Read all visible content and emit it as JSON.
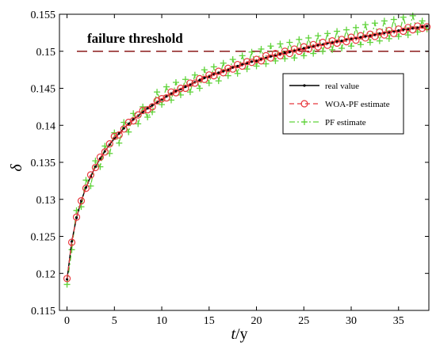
{
  "chart_data": {
    "type": "line",
    "xlabel_italic": "t",
    "xlabel_unit": "/y",
    "ylabel": "δ",
    "xlim": [
      -0.8,
      38.2
    ],
    "ylim": [
      0.115,
      0.155
    ],
    "xticks": [
      0,
      5,
      10,
      15,
      20,
      25,
      30,
      35
    ],
    "yticks": [
      0.115,
      0.12,
      0.125,
      0.13,
      0.135,
      0.14,
      0.145,
      0.15,
      0.155
    ],
    "ytick_labels": [
      "0.115",
      "0.12",
      "0.125",
      "0.13",
      "0.135",
      "0.14",
      "0.145",
      "0.15",
      "0.155"
    ],
    "threshold": {
      "value": 0.15,
      "label": "failure threshold",
      "color": "#8B1A1A"
    },
    "legend": {
      "position": "right",
      "entries": [
        {
          "name": "real value",
          "color": "#000000"
        },
        {
          "name": "WOA-PF estimate",
          "color": "#E8383D"
        },
        {
          "name": "PF estimate",
          "color": "#5FD33A"
        }
      ]
    },
    "series": [
      {
        "name": "real value",
        "color": "#000000",
        "x": [
          0,
          0.5,
          1,
          1.5,
          2,
          2.5,
          3,
          3.5,
          4,
          4.5,
          5,
          5.5,
          6,
          6.5,
          7,
          7.5,
          8,
          8.5,
          9,
          9.5,
          10,
          10.5,
          11,
          11.5,
          12,
          12.5,
          13,
          13.5,
          14,
          14.5,
          15,
          15.5,
          16,
          16.5,
          17,
          17.5,
          18,
          18.5,
          19,
          19.5,
          20,
          20.5,
          21,
          21.5,
          22,
          22.5,
          23,
          23.5,
          24,
          24.5,
          25,
          25.5,
          26,
          26.5,
          27,
          27.5,
          28,
          28.5,
          29,
          29.5,
          30,
          30.5,
          31,
          31.5,
          32,
          32.5,
          33,
          33.5,
          34,
          34.5,
          35,
          35.5,
          36,
          36.5,
          37,
          37.5,
          38
        ],
        "y": [
          0.1192,
          0.1243,
          0.1275,
          0.1298,
          0.1316,
          0.1331,
          0.1344,
          0.1355,
          0.1365,
          0.1374,
          0.1382,
          0.1389,
          0.1396,
          0.1402,
          0.1408,
          0.1413,
          0.1418,
          0.1423,
          0.1427,
          0.1431,
          0.1435,
          0.1439,
          0.1443,
          0.1446,
          0.1449,
          0.1452,
          0.1455,
          0.1458,
          0.1461,
          0.1464,
          0.1466,
          0.1469,
          0.1471,
          0.1473,
          0.1475,
          0.1478,
          0.148,
          0.1482,
          0.1484,
          0.1486,
          0.1487,
          0.1489,
          0.1491,
          0.1493,
          0.1494,
          0.1496,
          0.1498,
          0.1499,
          0.1501,
          0.1502,
          0.1504,
          0.1505,
          0.1507,
          0.1508,
          0.1509,
          0.1511,
          0.1512,
          0.1513,
          0.1514,
          0.1516,
          0.1517,
          0.1518,
          0.1519,
          0.152,
          0.1521,
          0.1522,
          0.1524,
          0.1525,
          0.1526,
          0.1527,
          0.1528,
          0.1529,
          0.153,
          0.1531,
          0.1532,
          0.1533,
          0.1534
        ]
      },
      {
        "name": "WOA-PF estimate",
        "color": "#E8383D",
        "x": [
          0,
          0.5,
          1,
          1.5,
          2,
          2.5,
          3,
          3.5,
          4,
          4.5,
          5,
          5.5,
          6,
          6.5,
          7,
          7.5,
          8,
          8.5,
          9,
          9.5,
          10,
          10.5,
          11,
          11.5,
          12,
          12.5,
          13,
          13.5,
          14,
          14.5,
          15,
          15.5,
          16,
          16.5,
          17,
          17.5,
          18,
          18.5,
          19,
          19.5,
          20,
          20.5,
          21,
          21.5,
          22,
          22.5,
          23,
          23.5,
          24,
          24.5,
          25,
          25.5,
          26,
          26.5,
          27,
          27.5,
          28,
          28.5,
          29,
          29.5,
          30,
          30.5,
          31,
          31.5,
          32,
          32.5,
          33,
          33.5,
          34,
          34.5,
          35,
          35.5,
          36,
          36.5,
          37,
          37.5,
          38
        ],
        "y": [
          0.1193,
          0.1242,
          0.1276,
          0.1298,
          0.1315,
          0.1333,
          0.1343,
          0.1357,
          0.1364,
          0.1375,
          0.1385,
          0.1387,
          0.1395,
          0.1404,
          0.1406,
          0.1414,
          0.142,
          0.1421,
          0.1425,
          0.1433,
          0.1436,
          0.1437,
          0.1445,
          0.1444,
          0.145,
          0.145,
          0.1457,
          0.1457,
          0.1463,
          0.1462,
          0.1468,
          0.1467,
          0.1473,
          0.1471,
          0.1477,
          0.1476,
          0.1482,
          0.148,
          0.1486,
          0.1485,
          0.1489,
          0.1487,
          0.1494,
          0.1491,
          0.1497,
          0.1494,
          0.15,
          0.1497,
          0.1503,
          0.15,
          0.1506,
          0.1503,
          0.1509,
          0.1506,
          0.1512,
          0.1508,
          0.1514,
          0.1511,
          0.1516,
          0.1513,
          0.1519,
          0.1515,
          0.1521,
          0.1518,
          0.1523,
          0.152,
          0.1526,
          0.1522,
          0.1528,
          0.1524,
          0.153,
          0.1527,
          0.1532,
          0.1529,
          0.1534,
          0.1531,
          0.1533
        ]
      },
      {
        "name": "PF estimate",
        "color": "#5FD33A",
        "x": [
          0,
          0.5,
          1,
          1.5,
          2,
          2.5,
          3,
          3.5,
          4,
          4.5,
          5,
          5.5,
          6,
          6.5,
          7,
          7.5,
          8,
          8.5,
          9,
          9.5,
          10,
          10.5,
          11,
          11.5,
          12,
          12.5,
          13,
          13.5,
          14,
          14.5,
          15,
          15.5,
          16,
          16.5,
          17,
          17.5,
          18,
          18.5,
          19,
          19.5,
          20,
          20.5,
          21,
          21.5,
          22,
          22.5,
          23,
          23.5,
          24,
          24.5,
          25,
          25.5,
          26,
          26.5,
          27,
          27.5,
          28,
          28.5,
          29,
          29.5,
          30,
          30.5,
          31,
          31.5,
          32,
          32.5,
          33,
          33.5,
          34,
          34.5,
          35,
          35.5,
          36,
          36.5,
          37,
          37.5,
          38
        ],
        "y": [
          0.1185,
          0.1232,
          0.1285,
          0.129,
          0.1326,
          0.1318,
          0.1352,
          0.1344,
          0.1372,
          0.1362,
          0.139,
          0.1376,
          0.1404,
          0.1391,
          0.1416,
          0.1402,
          0.1425,
          0.1411,
          0.1418,
          0.1445,
          0.1428,
          0.1452,
          0.1434,
          0.1458,
          0.1441,
          0.1462,
          0.1445,
          0.1468,
          0.145,
          0.1475,
          0.1457,
          0.1479,
          0.146,
          0.1484,
          0.1467,
          0.1489,
          0.147,
          0.1494,
          0.1476,
          0.1499,
          0.148,
          0.1503,
          0.1483,
          0.1507,
          0.1487,
          0.151,
          0.149,
          0.1512,
          0.1491,
          0.1516,
          0.1494,
          0.1518,
          0.1497,
          0.1521,
          0.15,
          0.1524,
          0.1502,
          0.1527,
          0.1504,
          0.1529,
          0.1507,
          0.1532,
          0.1509,
          0.1536,
          0.1512,
          0.1538,
          0.1514,
          0.1541,
          0.1517,
          0.1543,
          0.152,
          0.1546,
          0.1522,
          0.1548,
          0.1526,
          0.1541,
          0.153
        ]
      }
    ]
  }
}
